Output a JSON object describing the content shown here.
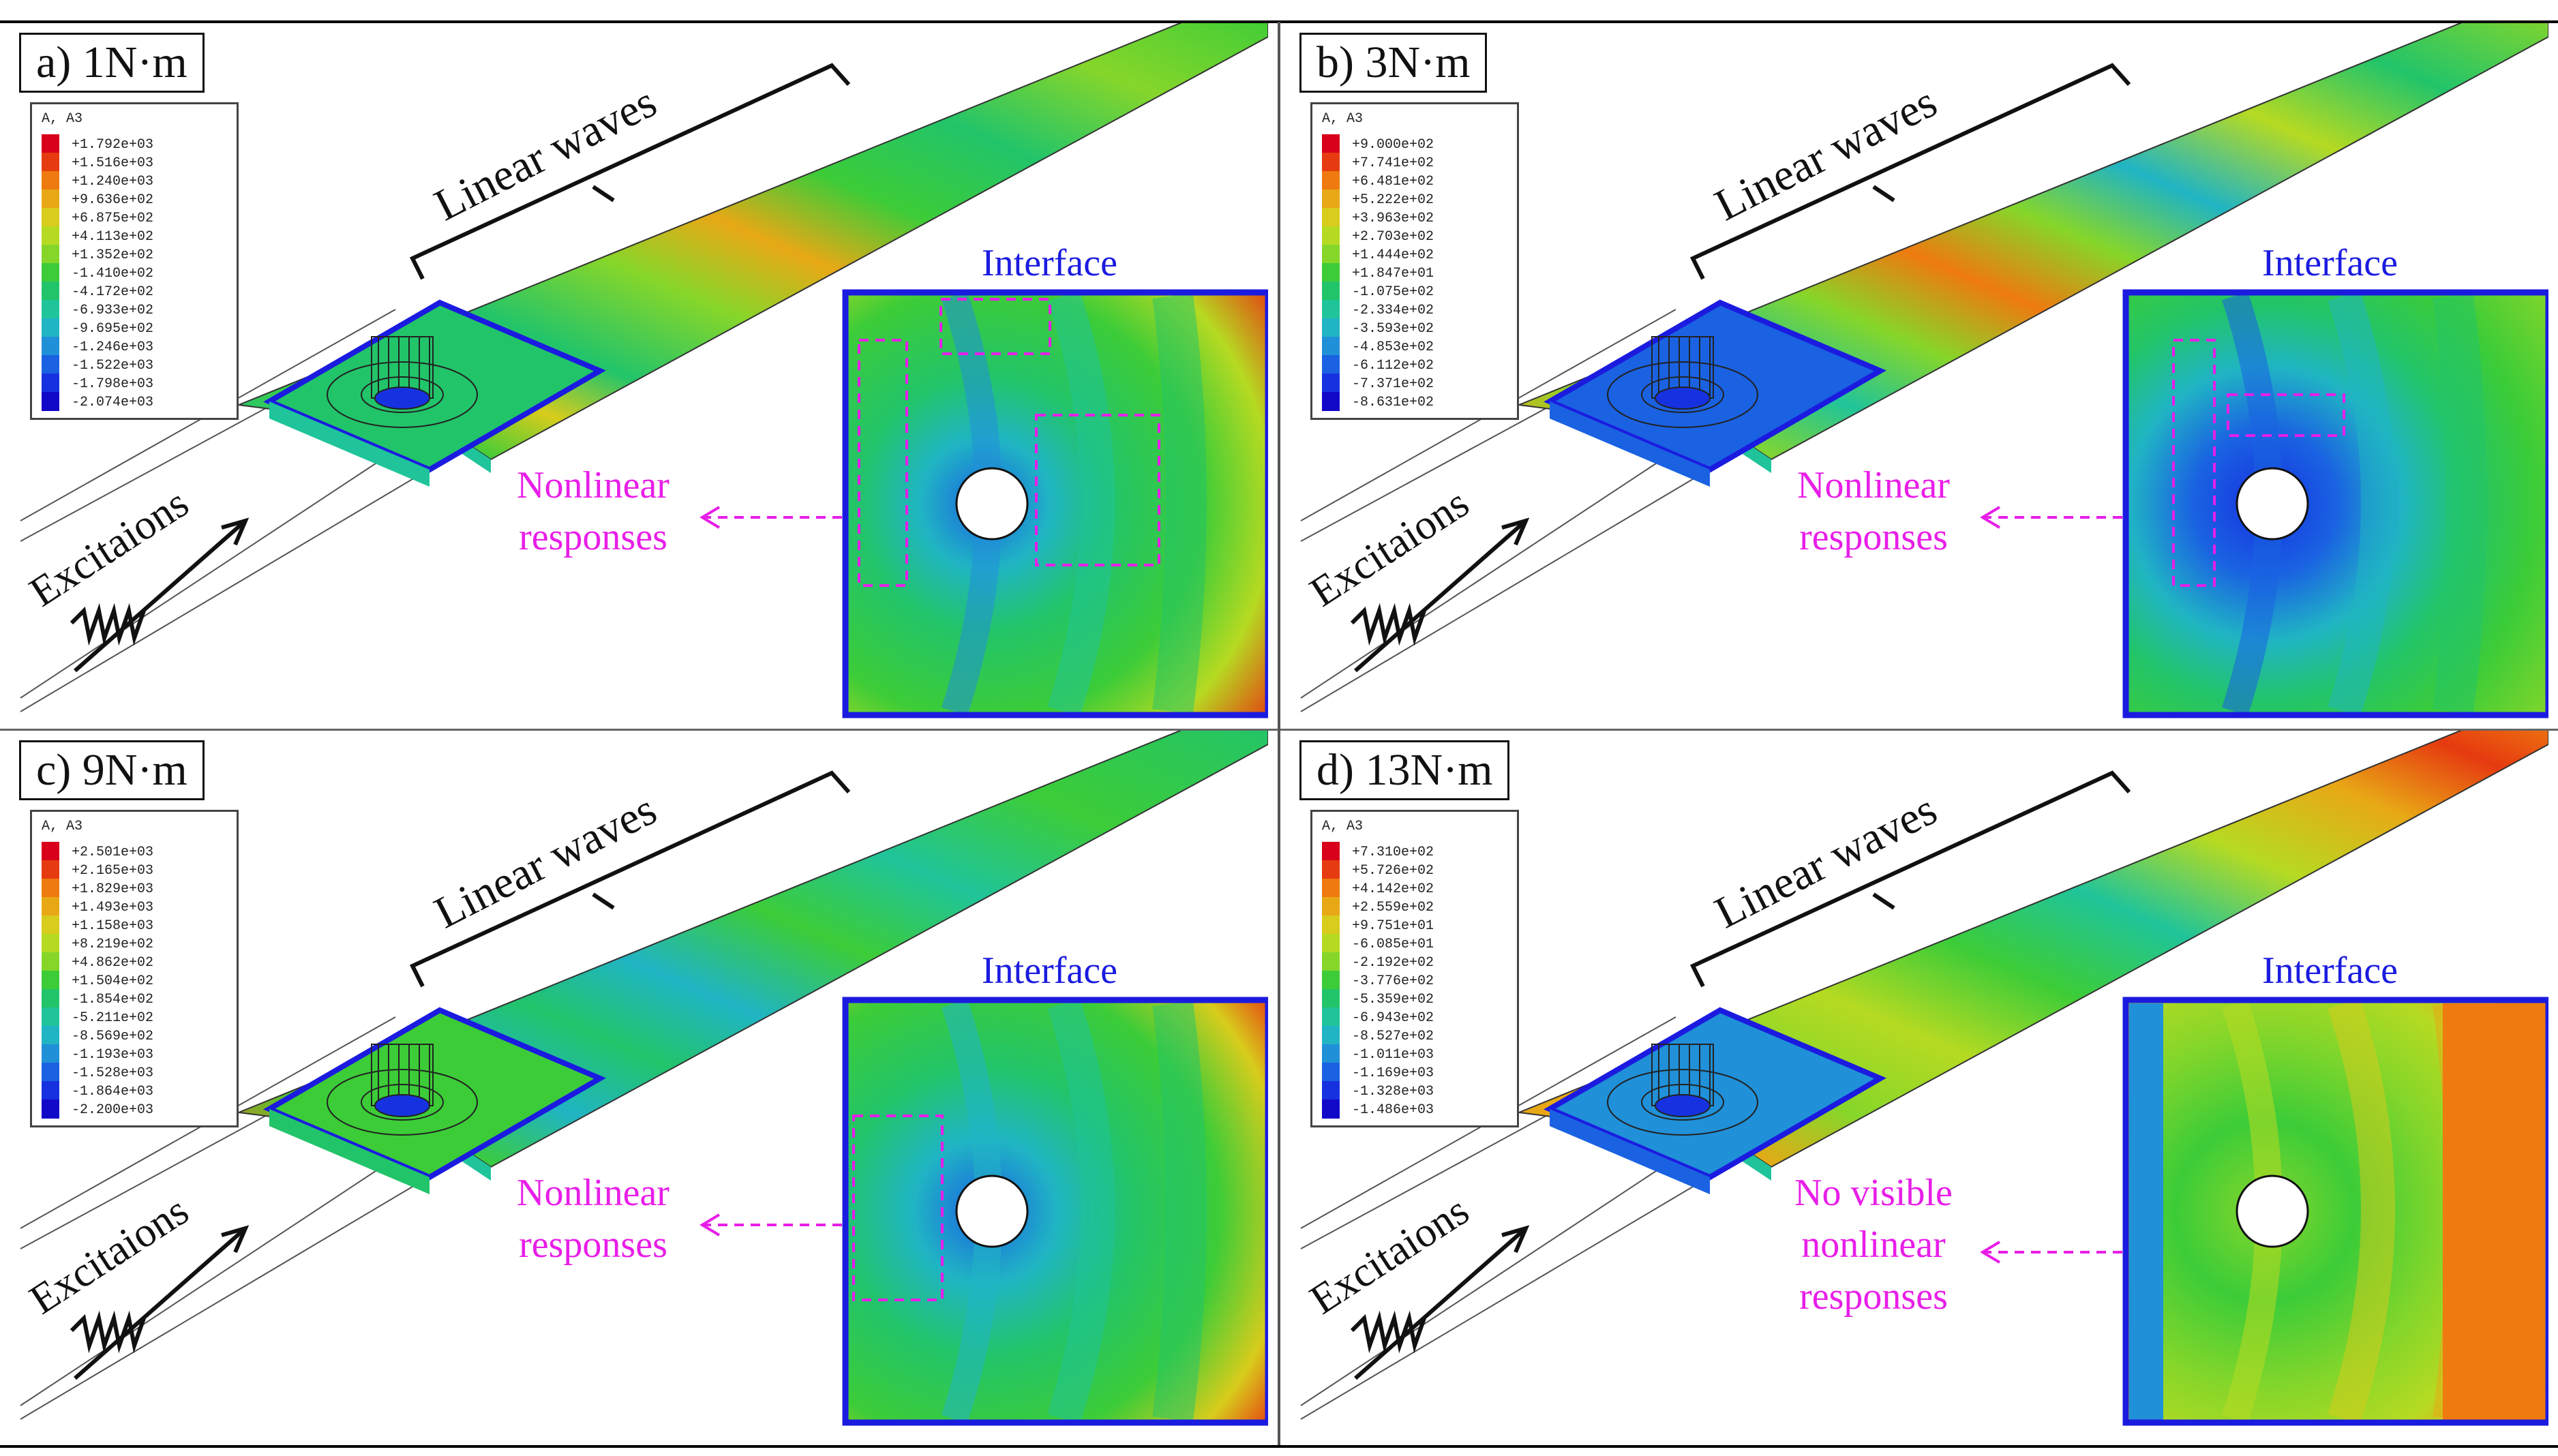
{
  "common": {
    "linear_waves": "Linear waves",
    "excitations": "Excitaions",
    "interface": "Interface",
    "legend_title": "A, A3"
  },
  "panels": [
    {
      "label": "a) 1N·m",
      "response_lines": [
        "Nonlinear",
        "responses"
      ],
      "legend_values": [
        "+1.792e+03",
        "+1.516e+03",
        "+1.240e+03",
        "+9.636e+02",
        "+6.875e+02",
        "+4.113e+02",
        "+1.352e+02",
        "-1.410e+02",
        "-4.172e+02",
        "-6.933e+02",
        "-9.695e+02",
        "-1.246e+03",
        "-1.522e+03",
        "-1.798e+03",
        "-2.074e+03"
      ]
    },
    {
      "label": "b) 3N·m",
      "response_lines": [
        "Nonlinear",
        "responses"
      ],
      "legend_values": [
        "+9.000e+02",
        "+7.741e+02",
        "+6.481e+02",
        "+5.222e+02",
        "+3.963e+02",
        "+2.703e+02",
        "+1.444e+02",
        "+1.847e+01",
        "-1.075e+02",
        "-2.334e+02",
        "-3.593e+02",
        "-4.853e+02",
        "-6.112e+02",
        "-7.371e+02",
        "-8.631e+02"
      ]
    },
    {
      "label": "c) 9N·m",
      "response_lines": [
        "Nonlinear",
        "responses"
      ],
      "legend_values": [
        "+2.501e+03",
        "+2.165e+03",
        "+1.829e+03",
        "+1.493e+03",
        "+1.158e+03",
        "+8.219e+02",
        "+4.862e+02",
        "+1.504e+02",
        "-1.854e+02",
        "-5.211e+02",
        "-8.569e+02",
        "-1.193e+03",
        "-1.528e+03",
        "-1.864e+03",
        "-2.200e+03"
      ]
    },
    {
      "label": "d) 13N·m",
      "response_lines": [
        "No visible",
        "nonlinear",
        "responses"
      ],
      "legend_values": [
        "+7.310e+02",
        "+5.726e+02",
        "+4.142e+02",
        "+2.559e+02",
        "+9.751e+01",
        "-6.085e+01",
        "-2.192e+02",
        "-3.776e+02",
        "-5.359e+02",
        "-6.943e+02",
        "-8.527e+02",
        "-1.011e+03",
        "-1.169e+03",
        "-1.328e+03",
        "-1.486e+03"
      ]
    }
  ],
  "colors": {
    "scale": [
      "#d8001a",
      "#e63a10",
      "#ee7a10",
      "#e8a816",
      "#d8cc1c",
      "#b6da22",
      "#86d62a",
      "#3ccc38",
      "#22c46a",
      "#20c49a",
      "#20b4c4",
      "#2090d8",
      "#1a62e2",
      "#1632e0",
      "#1208c8"
    ],
    "interface_box": "#1b1be0",
    "annotation": "#e81ee8"
  }
}
